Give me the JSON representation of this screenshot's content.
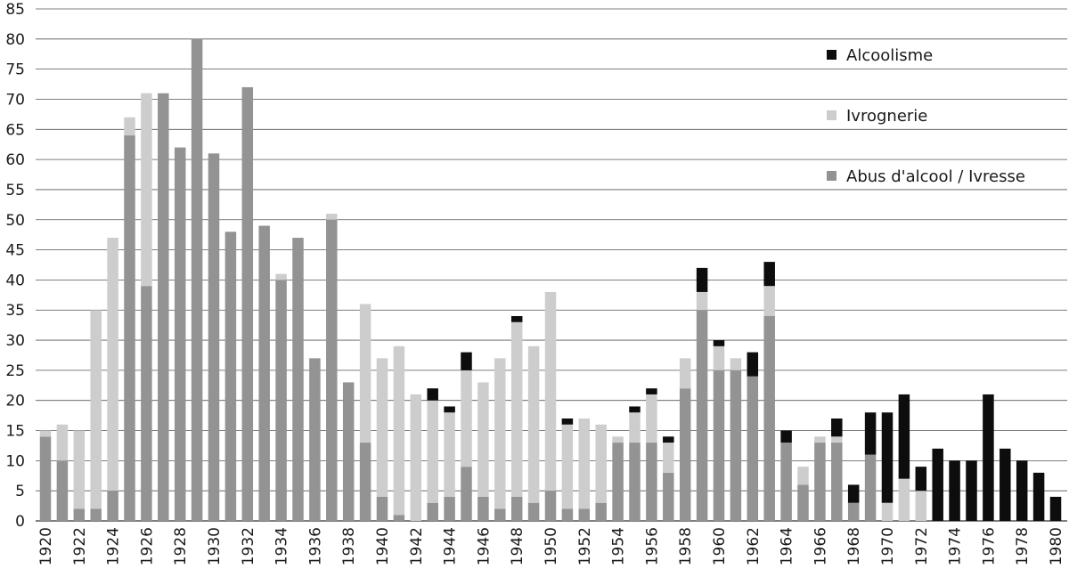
{
  "chart_data": {
    "type": "bar",
    "stacked": true,
    "categories": [
      "1920",
      "1921",
      "1922",
      "1923",
      "1924",
      "1925",
      "1926",
      "1927",
      "1928",
      "1929",
      "1930",
      "1931",
      "1932",
      "1933",
      "1934",
      "1935",
      "1936",
      "1937",
      "1938",
      "1939",
      "1940",
      "1941",
      "1942",
      "1943",
      "1944",
      "1945",
      "1946",
      "1947",
      "1948",
      "1949",
      "1950",
      "1951",
      "1952",
      "1953",
      "1954",
      "1955",
      "1956",
      "1957",
      "1958",
      "1959",
      "1960",
      "1961",
      "1962",
      "1963",
      "1964",
      "1965",
      "1966",
      "1967",
      "1968",
      "1969",
      "1970",
      "1971",
      "1972",
      "1973",
      "1974",
      "1975",
      "1976",
      "1977",
      "1978",
      "1979",
      "1980"
    ],
    "x_tick_labels": [
      "1920",
      "1922",
      "1924",
      "1926",
      "1928",
      "1930",
      "1932",
      "1934",
      "1936",
      "1938",
      "1940",
      "1942",
      "1944",
      "1946",
      "1948",
      "1950",
      "1952",
      "1954",
      "1956",
      "1958",
      "1960",
      "1962",
      "1964",
      "1966",
      "1968",
      "1970",
      "1972",
      "1974",
      "1976",
      "1978",
      "1980"
    ],
    "y_ticks": [
      0,
      5,
      10,
      15,
      20,
      25,
      30,
      35,
      40,
      45,
      50,
      55,
      60,
      65,
      70,
      75,
      80,
      85
    ],
    "ylim": [
      0,
      85
    ],
    "title": "",
    "xlabel": "",
    "ylabel": "",
    "grid": true,
    "legend_position": "top-right",
    "legend_order": [
      "Alcoolisme",
      "Ivrognerie",
      "Abus d'alcool / Ivresse"
    ],
    "series": [
      {
        "name": "Abus d'alcool / Ivresse",
        "color": "#939393",
        "values": [
          14,
          10,
          2,
          2,
          5,
          64,
          39,
          71,
          62,
          80,
          61,
          48,
          72,
          49,
          40,
          47,
          27,
          50,
          23,
          13,
          4,
          1,
          0,
          3,
          4,
          9,
          4,
          2,
          4,
          3,
          5,
          2,
          2,
          3,
          13,
          13,
          13,
          8,
          22,
          35,
          25,
          25,
          24,
          34,
          13,
          6,
          13,
          13,
          3,
          11,
          0,
          0,
          0,
          0,
          0,
          0,
          0,
          0,
          0,
          0,
          0
        ]
      },
      {
        "name": "Ivrognerie",
        "color": "#cdcdcd",
        "values": [
          1,
          6,
          13,
          33,
          42,
          3,
          32,
          0,
          0,
          0,
          0,
          0,
          0,
          0,
          1,
          0,
          0,
          1,
          0,
          23,
          23,
          28,
          21,
          17,
          14,
          16,
          19,
          25,
          29,
          26,
          33,
          14,
          15,
          13,
          1,
          5,
          8,
          5,
          5,
          3,
          4,
          2,
          0,
          5,
          0,
          3,
          1,
          1,
          0,
          0,
          3,
          7,
          5,
          0,
          0,
          0,
          0,
          0,
          0,
          0,
          0
        ]
      },
      {
        "name": "Alcoolisme",
        "color": "#0d0d0d",
        "values": [
          0,
          0,
          0,
          0,
          0,
          0,
          0,
          0,
          0,
          0,
          0,
          0,
          0,
          0,
          0,
          0,
          0,
          0,
          0,
          0,
          0,
          0,
          0,
          2,
          1,
          3,
          0,
          0,
          1,
          0,
          0,
          1,
          0,
          0,
          0,
          1,
          1,
          1,
          0,
          4,
          1,
          0,
          4,
          4,
          2,
          0,
          0,
          3,
          3,
          7,
          15,
          14,
          4,
          12,
          10,
          10,
          21,
          12,
          10,
          8,
          4
        ]
      }
    ]
  }
}
